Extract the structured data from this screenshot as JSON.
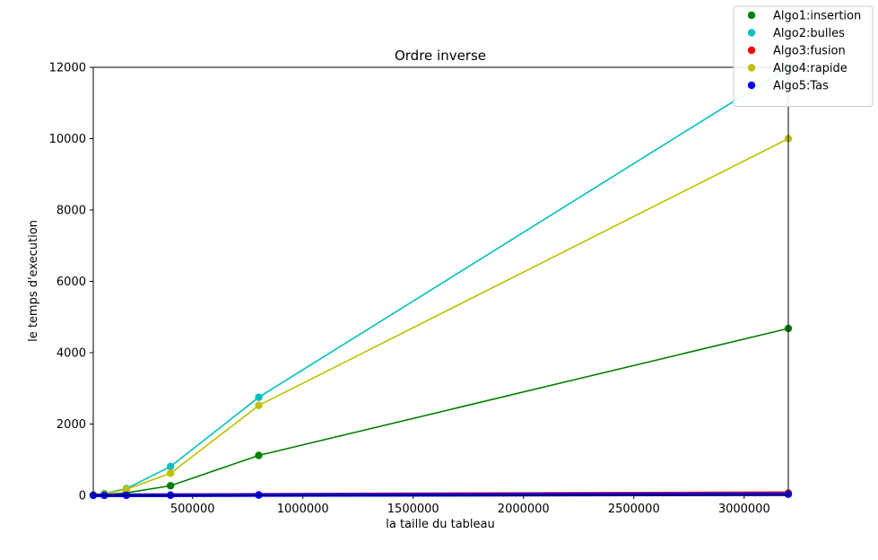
{
  "chart_data": {
    "type": "line",
    "title": "Ordre inverse",
    "xlabel": "la taille du tableau",
    "ylabel": "le temps d'execution",
    "xlim": [
      50000,
      3200000
    ],
    "ylim": [
      0,
      12000
    ],
    "x": [
      50000,
      100000,
      200000,
      400000,
      800000,
      3200000
    ],
    "xticks": [
      500000,
      1000000,
      1500000,
      2000000,
      2500000,
      3000000
    ],
    "yticks": [
      0,
      2000,
      4000,
      6000,
      8000,
      10000,
      12000
    ],
    "grid": false,
    "legend_position": "top-right",
    "series": [
      {
        "name": "Algo1:insertion",
        "color": "#008000",
        "values": [
          4,
          17,
          70,
          270,
          1120,
          4680
        ]
      },
      {
        "name": "Algo2:bulles",
        "color": "#00bfbf",
        "values": [
          12,
          50,
          190,
          810,
          2750,
          12000
        ]
      },
      {
        "name": "Algo3:fusion",
        "color": "#ff0000",
        "values": [
          1,
          2,
          4,
          8,
          16,
          64
        ]
      },
      {
        "name": "Algo4:rapide",
        "color": "#bfbf00",
        "values": [
          10,
          40,
          170,
          620,
          2520,
          10000
        ]
      },
      {
        "name": "Algo5:Tas",
        "color": "#0000ff",
        "values": [
          1,
          1,
          2,
          4,
          8,
          32
        ]
      }
    ]
  }
}
